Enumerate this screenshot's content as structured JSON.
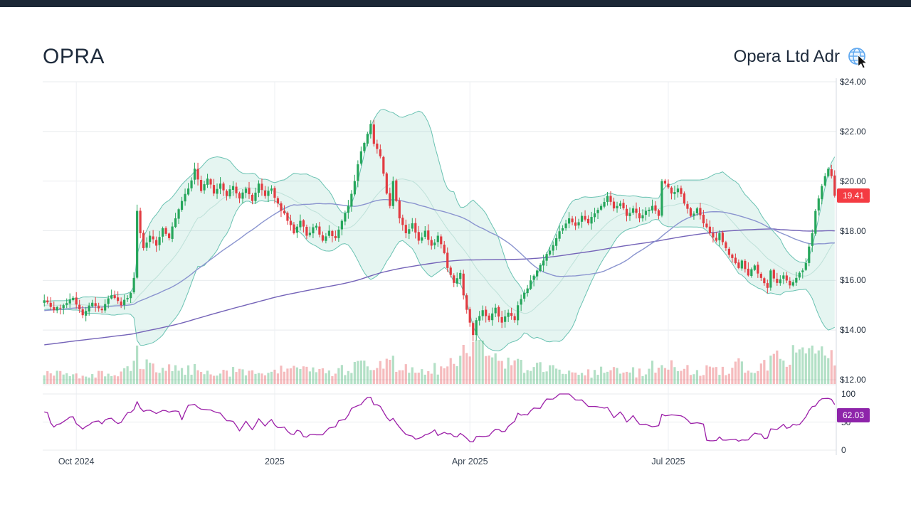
{
  "page": {
    "title_symbol": "OPRA",
    "title_name": "Opera Ltd Adr"
  },
  "badges": {
    "last_price": "19.41",
    "rsi": "62.03"
  },
  "colors": {
    "topbar": "#1c2836",
    "title": "#1e2b3c",
    "up": "#26a65b",
    "down": "#e23b41",
    "band_fill": "rgba(94,190,166,0.16)",
    "band_edge": "#52b9a6",
    "band_mid": "#b9dfd6",
    "sma50": "#8a94cf",
    "sma200": "#7463b8",
    "rsi_line": "#9c1fa8",
    "price_badge": "#f43b42",
    "rsi_badge": "#8e24aa",
    "grid": "#e8ebee",
    "grid_vertical": "#edf0f3",
    "frame": "#d4dae0"
  },
  "chart_data": {
    "type": "candlestick",
    "title": "OPRA — Opera Ltd Adr",
    "symbol": "OPRA",
    "company": "Opera Ltd Adr",
    "last_price": 19.41,
    "rsi_last": 62.03,
    "panels": [
      "price with Bollinger Bands, SMA50, SMA200",
      "volume",
      "RSI"
    ],
    "price_axis": {
      "min": 12,
      "max": 24,
      "tick_step": 2,
      "ticks": [
        {
          "t": "$24.00",
          "v": 24
        },
        {
          "t": "$22.00",
          "v": 22
        },
        {
          "t": "$20.00",
          "v": 20
        },
        {
          "t": "$18.00",
          "v": 18
        },
        {
          "t": "$16.00",
          "v": 16
        },
        {
          "t": "$14.00",
          "v": 14
        },
        {
          "t": "$12.00",
          "v": 12
        }
      ]
    },
    "rsi_axis": {
      "ticks": [
        {
          "t": "100",
          "v": 100
        },
        {
          "t": "50",
          "v": 50
        },
        {
          "t": "0",
          "v": 0
        }
      ]
    },
    "x_axis": {
      "total_days": 248,
      "ticks": [
        {
          "t": "Oct 2024",
          "d": 10
        },
        {
          "t": "2025",
          "d": 72
        },
        {
          "t": "Apr 2025",
          "d": 133
        },
        {
          "t": "Jul 2025",
          "d": 195
        }
      ]
    },
    "close_anchors": [
      [
        0,
        15.2
      ],
      [
        3,
        14.8
      ],
      [
        6,
        15.0
      ],
      [
        9,
        15.3
      ],
      [
        12,
        14.6
      ],
      [
        15,
        15.1
      ],
      [
        18,
        14.8
      ],
      [
        21,
        15.4
      ],
      [
        24,
        15.0
      ],
      [
        27,
        15.5
      ],
      [
        28,
        16.1
      ],
      [
        29,
        18.8
      ],
      [
        30,
        17.9
      ],
      [
        31,
        17.3
      ],
      [
        33,
        17.8
      ],
      [
        35,
        17.4
      ],
      [
        37,
        18.1
      ],
      [
        39,
        17.7
      ],
      [
        41,
        18.5
      ],
      [
        43,
        19.2
      ],
      [
        45,
        19.7
      ],
      [
        47,
        20.5
      ],
      [
        49,
        19.6
      ],
      [
        51,
        20.1
      ],
      [
        53,
        19.5
      ],
      [
        55,
        19.9
      ],
      [
        57,
        19.4
      ],
      [
        59,
        19.8
      ],
      [
        61,
        19.3
      ],
      [
        63,
        19.7
      ],
      [
        65,
        19.2
      ],
      [
        67,
        19.9
      ],
      [
        69,
        19.4
      ],
      [
        71,
        19.7
      ],
      [
        73,
        19.1
      ],
      [
        76,
        18.4
      ],
      [
        78,
        17.9
      ],
      [
        80,
        18.4
      ],
      [
        82,
        17.8
      ],
      [
        85,
        18.2
      ],
      [
        87,
        17.6
      ],
      [
        89,
        18.0
      ],
      [
        91,
        17.7
      ],
      [
        93,
        18.4
      ],
      [
        95,
        19.0
      ],
      [
        97,
        20.0
      ],
      [
        99,
        21.2
      ],
      [
        101,
        21.9
      ],
      [
        102,
        22.3
      ],
      [
        103,
        21.5
      ],
      [
        105,
        21.0
      ],
      [
        106,
        20.3
      ],
      [
        107,
        19.5
      ],
      [
        108,
        19.0
      ],
      [
        109,
        20.0
      ],
      [
        110,
        19.2
      ],
      [
        111,
        18.5
      ],
      [
        113,
        17.9
      ],
      [
        115,
        18.3
      ],
      [
        117,
        17.6
      ],
      [
        119,
        18.0
      ],
      [
        121,
        17.4
      ],
      [
        123,
        17.8
      ],
      [
        125,
        17.1
      ],
      [
        126,
        16.5
      ],
      [
        128,
        15.9
      ],
      [
        130,
        16.3
      ],
      [
        131,
        15.4
      ],
      [
        133,
        14.3
      ],
      [
        134,
        13.8
      ],
      [
        135,
        14.4
      ],
      [
        137,
        14.8
      ],
      [
        139,
        14.4
      ],
      [
        141,
        14.9
      ],
      [
        143,
        14.3
      ],
      [
        145,
        14.7
      ],
      [
        147,
        14.4
      ],
      [
        148,
        15.0
      ],
      [
        150,
        15.5
      ],
      [
        152,
        16.0
      ],
      [
        154,
        16.4
      ],
      [
        156,
        16.8
      ],
      [
        158,
        17.2
      ],
      [
        160,
        17.7
      ],
      [
        162,
        18.1
      ],
      [
        164,
        18.5
      ],
      [
        166,
        18.2
      ],
      [
        168,
        18.6
      ],
      [
        170,
        18.3
      ],
      [
        172,
        18.7
      ],
      [
        174,
        19.0
      ],
      [
        176,
        19.4
      ],
      [
        178,
        18.9
      ],
      [
        180,
        19.1
      ],
      [
        182,
        18.6
      ],
      [
        184,
        18.9
      ],
      [
        186,
        18.5
      ],
      [
        188,
        18.8
      ],
      [
        190,
        19.0
      ],
      [
        192,
        18.6
      ],
      [
        193,
        20.0
      ],
      [
        194,
        19.9
      ],
      [
        196,
        19.5
      ],
      [
        198,
        19.7
      ],
      [
        200,
        19.1
      ],
      [
        202,
        18.6
      ],
      [
        204,
        18.9
      ],
      [
        206,
        18.3
      ],
      [
        208,
        17.9
      ],
      [
        210,
        17.6
      ],
      [
        211,
        17.9
      ],
      [
        213,
        17.3
      ],
      [
        215,
        16.9
      ],
      [
        217,
        16.5
      ],
      [
        218,
        16.8
      ],
      [
        220,
        16.2
      ],
      [
        222,
        16.6
      ],
      [
        224,
        16.1
      ],
      [
        226,
        15.7
      ],
      [
        227,
        16.4
      ],
      [
        229,
        15.9
      ],
      [
        231,
        16.2
      ],
      [
        233,
        15.8
      ],
      [
        235,
        16.1
      ],
      [
        237,
        16.4
      ],
      [
        238,
        16.7
      ],
      [
        240,
        17.9
      ],
      [
        241,
        18.8
      ],
      [
        242,
        19.3
      ],
      [
        243,
        19.8
      ],
      [
        244,
        20.2
      ],
      [
        245,
        20.5
      ],
      [
        246,
        20.2
      ],
      [
        247,
        19.41
      ]
    ],
    "prehistory_anchors": [
      [
        -200,
        11.6
      ],
      [
        -170,
        12.2
      ],
      [
        -140,
        12.6
      ],
      [
        -110,
        13.1
      ],
      [
        -80,
        13.8
      ],
      [
        -50,
        14.4
      ],
      [
        -25,
        14.8
      ],
      [
        -1,
        15.1
      ]
    ],
    "volume_anchors": [
      [
        0,
        0.2
      ],
      [
        8,
        0.22
      ],
      [
        16,
        0.2
      ],
      [
        24,
        0.25
      ],
      [
        28,
        0.5
      ],
      [
        29,
        1.0
      ],
      [
        30,
        0.6
      ],
      [
        33,
        0.4
      ],
      [
        38,
        0.3
      ],
      [
        44,
        0.35
      ],
      [
        50,
        0.3
      ],
      [
        56,
        0.28
      ],
      [
        62,
        0.3
      ],
      [
        68,
        0.26
      ],
      [
        73,
        0.3
      ],
      [
        78,
        0.32
      ],
      [
        84,
        0.26
      ],
      [
        90,
        0.24
      ],
      [
        96,
        0.4
      ],
      [
        100,
        0.5
      ],
      [
        102,
        0.55
      ],
      [
        105,
        0.45
      ],
      [
        108,
        0.5
      ],
      [
        112,
        0.35
      ],
      [
        118,
        0.3
      ],
      [
        124,
        0.35
      ],
      [
        130,
        0.5
      ],
      [
        133,
        0.85
      ],
      [
        135,
        0.95
      ],
      [
        138,
        0.6
      ],
      [
        142,
        0.45
      ],
      [
        147,
        0.5
      ],
      [
        152,
        0.4
      ],
      [
        158,
        0.3
      ],
      [
        164,
        0.28
      ],
      [
        170,
        0.25
      ],
      [
        176,
        0.3
      ],
      [
        182,
        0.26
      ],
      [
        188,
        0.28
      ],
      [
        193,
        0.5
      ],
      [
        198,
        0.32
      ],
      [
        204,
        0.3
      ],
      [
        210,
        0.32
      ],
      [
        216,
        0.4
      ],
      [
        222,
        0.45
      ],
      [
        226,
        0.55
      ],
      [
        228,
        0.95
      ],
      [
        231,
        0.6
      ],
      [
        234,
        0.75
      ],
      [
        237,
        0.6
      ],
      [
        240,
        0.9
      ],
      [
        242,
        0.65
      ],
      [
        244,
        0.8
      ],
      [
        246,
        0.7
      ],
      [
        247,
        0.5
      ]
    ],
    "indicators": {
      "bollinger": {
        "period": 20,
        "stdev": 2
      },
      "sma_fast": 50,
      "sma_slow": 200,
      "rsi_period": 14
    }
  }
}
